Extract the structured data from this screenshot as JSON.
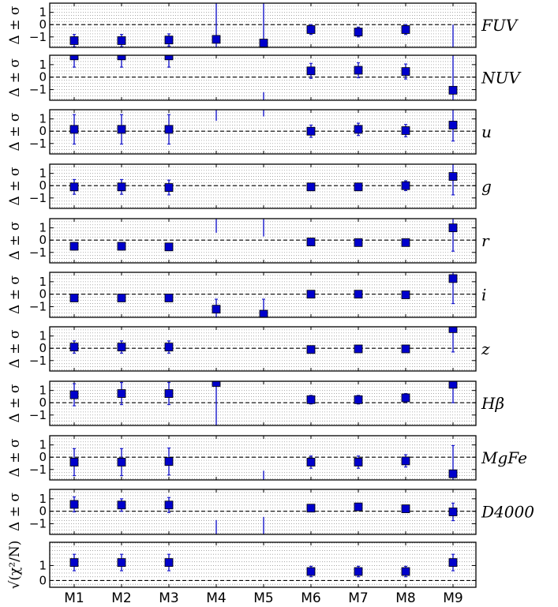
{
  "chart_data": {
    "type": "scatter",
    "categories": [
      "M1",
      "M2",
      "M3",
      "M4",
      "M5",
      "M6",
      "M7",
      "M8",
      "M9"
    ],
    "marker_color": "#0000cc",
    "errorbar_color": "#1a1acc",
    "panels": [
      {
        "label": "FUV",
        "ylabel": "Δ ± σ",
        "yticks": [
          "1",
          "0",
          "−1"
        ],
        "ytick_values": [
          1,
          0,
          -1
        ],
        "ylim": [
          -1.85,
          1.75
        ],
        "reference_line": 0,
        "points": [
          {
            "x": "M1",
            "y": -1.3,
            "err": 0.5
          },
          {
            "x": "M2",
            "y": -1.3,
            "err": 0.5
          },
          {
            "x": "M3",
            "y": -1.25,
            "err": 0.5
          },
          {
            "x": "M4",
            "y": -1.2,
            "err": 3.5
          },
          {
            "x": "M5",
            "y": -1.5,
            "err": 3.5
          },
          {
            "x": "M6",
            "y": -0.4,
            "err": 0.4
          },
          {
            "x": "M7",
            "y": -0.6,
            "err": 0.4
          },
          {
            "x": "M8",
            "y": -0.4,
            "err": 0.4
          },
          {
            "x": "M9",
            "y": null,
            "err_low": -2.0,
            "err_high": 0.0
          }
        ]
      },
      {
        "label": "NUV",
        "ylabel": "Δ ± σ",
        "yticks": [
          "1",
          "0",
          "−1"
        ],
        "ytick_values": [
          1,
          0,
          -1
        ],
        "ylim": [
          -1.85,
          1.75
        ],
        "reference_line": 0,
        "points": [
          {
            "x": "M1",
            "y": 1.7,
            "err": 0.9
          },
          {
            "x": "M2",
            "y": 1.7,
            "err": 0.9
          },
          {
            "x": "M3",
            "y": 1.7,
            "err": 0.9
          },
          {
            "x": "M4",
            "y": null,
            "err_low": null,
            "err_high": null
          },
          {
            "x": "M5",
            "y": null,
            "err_low": -2.0,
            "err_high": -1.2
          },
          {
            "x": "M6",
            "y": 0.5,
            "err": 0.6
          },
          {
            "x": "M7",
            "y": 0.55,
            "err": 0.6
          },
          {
            "x": "M8",
            "y": 0.45,
            "err": 0.6
          },
          {
            "x": "M9",
            "y": -1.05,
            "err": 3.0
          }
        ]
      },
      {
        "label": "u",
        "ylabel": "Δ ± σ",
        "yticks": [
          "1",
          "0",
          "−1"
        ],
        "ytick_values": [
          1,
          0,
          -1
        ],
        "ylim": [
          -1.85,
          1.75
        ],
        "reference_line": 0,
        "points": [
          {
            "x": "M1",
            "y": 0.15,
            "err": 1.2
          },
          {
            "x": "M2",
            "y": 0.15,
            "err": 1.2
          },
          {
            "x": "M3",
            "y": 0.15,
            "err": 1.2
          },
          {
            "x": "M4",
            "y": null,
            "err_low": 0.85,
            "err_high": 2.0
          },
          {
            "x": "M5",
            "y": null,
            "err_low": 1.2,
            "err_high": 2.0
          },
          {
            "x": "M6",
            "y": 0.0,
            "err": 0.5
          },
          {
            "x": "M7",
            "y": 0.15,
            "err": 0.5
          },
          {
            "x": "M8",
            "y": 0.05,
            "err": 0.5
          },
          {
            "x": "M9",
            "y": 0.5,
            "err": 1.3
          }
        ]
      },
      {
        "label": "g",
        "ylabel": "Δ ± σ",
        "yticks": [
          "1",
          "0",
          "−1"
        ],
        "ytick_values": [
          1,
          0,
          -1
        ],
        "ylim": [
          -1.85,
          1.75
        ],
        "reference_line": 0,
        "points": [
          {
            "x": "M1",
            "y": -0.1,
            "err": 0.6
          },
          {
            "x": "M2",
            "y": -0.1,
            "err": 0.6
          },
          {
            "x": "M3",
            "y": -0.15,
            "err": 0.6
          },
          {
            "x": "M6",
            "y": -0.1,
            "err": 0.2
          },
          {
            "x": "M7",
            "y": -0.1,
            "err": 0.2
          },
          {
            "x": "M8",
            "y": 0.0,
            "err": 0.4
          },
          {
            "x": "M9",
            "y": 0.75,
            "err": 1.5
          }
        ]
      },
      {
        "label": "r",
        "ylabel": "Δ ± σ",
        "yticks": [
          "1",
          "0",
          "−1"
        ],
        "ytick_values": [
          1,
          0,
          -1
        ],
        "ylim": [
          -1.85,
          1.75
        ],
        "reference_line": 0,
        "points": [
          {
            "x": "M1",
            "y": -0.5,
            "err": 0.3
          },
          {
            "x": "M2",
            "y": -0.5,
            "err": 0.3
          },
          {
            "x": "M3",
            "y": -0.55,
            "err": 0.3
          },
          {
            "x": "M4",
            "y": null,
            "err_low": 0.6,
            "err_high": 2.0
          },
          {
            "x": "M5",
            "y": null,
            "err_low": 0.3,
            "err_high": 2.0
          },
          {
            "x": "M6",
            "y": -0.15,
            "err": 0.2
          },
          {
            "x": "M7",
            "y": -0.2,
            "err": 0.2
          },
          {
            "x": "M8",
            "y": -0.2,
            "err": 0.2
          },
          {
            "x": "M9",
            "y": 1.0,
            "err": 1.9
          }
        ]
      },
      {
        "label": "i",
        "ylabel": "Δ ± σ",
        "yticks": [
          "1",
          "0",
          "−1"
        ],
        "ytick_values": [
          1,
          0,
          -1
        ],
        "ylim": [
          -1.85,
          1.75
        ],
        "reference_line": 0,
        "points": [
          {
            "x": "M1",
            "y": -0.3,
            "err": 0.2
          },
          {
            "x": "M2",
            "y": -0.3,
            "err": 0.2
          },
          {
            "x": "M3",
            "y": -0.3,
            "err": 0.2
          },
          {
            "x": "M4",
            "y": -1.2,
            "err": 0.8
          },
          {
            "x": "M5",
            "y": -1.6,
            "err": 1.2
          },
          {
            "x": "M6",
            "y": 0.0,
            "err": 0.15
          },
          {
            "x": "M7",
            "y": 0.0,
            "err": 0.15
          },
          {
            "x": "M8",
            "y": -0.05,
            "err": 0.15
          },
          {
            "x": "M9",
            "y": 1.25,
            "err": 2.0
          }
        ]
      },
      {
        "label": "z",
        "ylabel": "Δ ± σ",
        "yticks": [
          "1",
          "0",
          "−1"
        ],
        "ytick_values": [
          1,
          0,
          -1
        ],
        "ylim": [
          -1.85,
          1.75
        ],
        "reference_line": 0,
        "points": [
          {
            "x": "M1",
            "y": 0.1,
            "err": 0.5
          },
          {
            "x": "M2",
            "y": 0.1,
            "err": 0.5
          },
          {
            "x": "M3",
            "y": 0.1,
            "err": 0.5
          },
          {
            "x": "M6",
            "y": -0.1,
            "err": 0.25
          },
          {
            "x": "M7",
            "y": -0.05,
            "err": 0.25
          },
          {
            "x": "M8",
            "y": -0.05,
            "err": 0.25
          },
          {
            "x": "M9",
            "y": 1.6,
            "err": 1.9
          }
        ]
      },
      {
        "label": "Hβ",
        "ylabel": "Δ ± σ",
        "yticks": [
          "1",
          "0",
          "−1"
        ],
        "ytick_values": [
          1,
          0,
          -1
        ],
        "ylim": [
          -1.85,
          1.75
        ],
        "reference_line": 0,
        "points": [
          {
            "x": "M1",
            "y": 0.65,
            "err": 0.9
          },
          {
            "x": "M2",
            "y": 0.75,
            "err": 0.9
          },
          {
            "x": "M3",
            "y": 0.75,
            "err": 0.9
          },
          {
            "x": "M4",
            "y": 1.65,
            "err": 3.5
          },
          {
            "x": "M6",
            "y": 0.25,
            "err": 0.35
          },
          {
            "x": "M7",
            "y": 0.25,
            "err": 0.35
          },
          {
            "x": "M8",
            "y": 0.4,
            "err": 0.35
          },
          {
            "x": "M9",
            "y": 1.5,
            "err": 1.5
          }
        ]
      },
      {
        "label": "MgFe",
        "ylabel": "Δ ± σ",
        "yticks": [
          "1",
          "0",
          "−1"
        ],
        "ytick_values": [
          1,
          0,
          -1
        ],
        "ylim": [
          -1.85,
          1.75
        ],
        "reference_line": 0,
        "points": [
          {
            "x": "M1",
            "y": -0.4,
            "err": 1.1
          },
          {
            "x": "M2",
            "y": -0.4,
            "err": 1.1
          },
          {
            "x": "M3",
            "y": -0.35,
            "err": 1.1
          },
          {
            "x": "M5",
            "y": null,
            "err_low": -2.0,
            "err_high": -1.1
          },
          {
            "x": "M6",
            "y": -0.4,
            "err": 0.5
          },
          {
            "x": "M7",
            "y": -0.4,
            "err": 0.5
          },
          {
            "x": "M8",
            "y": -0.3,
            "err": 0.5
          },
          {
            "x": "M9",
            "y": -1.35,
            "err": 2.3
          }
        ]
      },
      {
        "label": "D4000",
        "ylabel": "Δ ± σ",
        "yticks": [
          "1",
          "0",
          "−1"
        ],
        "ytick_values": [
          1,
          0,
          -1
        ],
        "ylim": [
          -1.85,
          1.75
        ],
        "reference_line": 0,
        "points": [
          {
            "x": "M1",
            "y": 0.55,
            "err": 0.6
          },
          {
            "x": "M2",
            "y": 0.5,
            "err": 0.5
          },
          {
            "x": "M3",
            "y": 0.5,
            "err": 0.6
          },
          {
            "x": "M4",
            "y": null,
            "err_low": -2.0,
            "err_high": -0.7
          },
          {
            "x": "M5",
            "y": null,
            "err_low": -2.0,
            "err_high": -0.45
          },
          {
            "x": "M6",
            "y": 0.25,
            "err": 0.15
          },
          {
            "x": "M7",
            "y": 0.35,
            "err": 0.15
          },
          {
            "x": "M8",
            "y": 0.2,
            "err": 0.15
          },
          {
            "x": "M9",
            "y": -0.05,
            "err": 0.7
          }
        ]
      },
      {
        "label": "",
        "ylabel": "√(χ²/N)",
        "yticks": [
          "1",
          "0"
        ],
        "ytick_values": [
          1,
          0
        ],
        "ylim": [
          -0.45,
          2.55
        ],
        "reference_line": 0,
        "points": [
          {
            "x": "M1",
            "y": 1.2,
            "err": 0.55
          },
          {
            "x": "M2",
            "y": 1.2,
            "err": 0.55
          },
          {
            "x": "M3",
            "y": 1.2,
            "err": 0.55
          },
          {
            "x": "M6",
            "y": 0.6,
            "err": 0.35
          },
          {
            "x": "M7",
            "y": 0.6,
            "err": 0.35
          },
          {
            "x": "M8",
            "y": 0.6,
            "err": 0.35
          },
          {
            "x": "M9",
            "y": 1.2,
            "err": 0.55
          }
        ]
      }
    ],
    "grid": "horizontal-dotted",
    "xlabel": "",
    "title": ""
  }
}
